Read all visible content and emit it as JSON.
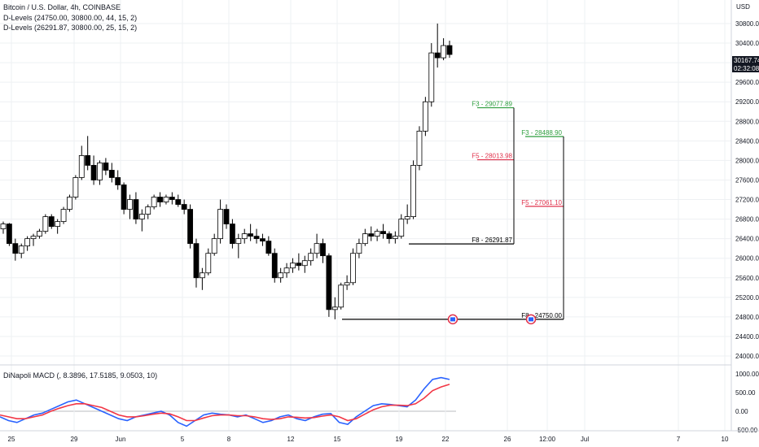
{
  "header": {
    "symbol_line": "Bitcoin / U.S. Dollar, 4h, COINBASE",
    "indicator_1": "D-Levels (24750.00, 30800.00, 44, 15, 2)",
    "indicator_2": "D-Levels (26291.87, 30800.00, 25, 15, 2)",
    "macd_label": "DiNapoli MACD (, 8.3896, 17.5185, 9.0503, 10)"
  },
  "price_axis": {
    "currency": "USD",
    "last_price": "30167.74",
    "countdown": "02:32:08"
  },
  "colors": {
    "up": "#ffffff",
    "down": "#000000",
    "wick": "#000000",
    "fib_green": "#2e9e3e",
    "fib_red": "#e0314b",
    "macd_blue": "#2962ff",
    "macd_red": "#f23645",
    "grid": "#eef0f3",
    "price_badge": "#131722"
  },
  "chart_data": {
    "type": "candlestick",
    "title": "Bitcoin / U.S. Dollar, 4h, COINBASE",
    "ylabel": "USD",
    "ylim": [
      23800,
      31300
    ],
    "yticks": [
      24000,
      24400,
      24800,
      25200,
      25600,
      26000,
      26400,
      26800,
      27200,
      27600,
      28000,
      28400,
      28800,
      29200,
      29600,
      30000,
      30400,
      30800
    ],
    "x_labels": [
      "25",
      "29",
      "Jun",
      "5",
      "8",
      "12",
      "15",
      "19",
      "22",
      "26",
      "12:00",
      "Jul",
      "7",
      "10"
    ],
    "grid": true,
    "ohlc": [
      [
        26600,
        26750,
        26500,
        26700
      ],
      [
        26700,
        26720,
        26250,
        26300
      ],
      [
        26300,
        26400,
        25950,
        26100
      ],
      [
        26100,
        26300,
        26000,
        26250
      ],
      [
        26250,
        26450,
        26150,
        26400
      ],
      [
        26400,
        26500,
        26250,
        26450
      ],
      [
        26450,
        26600,
        26400,
        26550
      ],
      [
        26550,
        26900,
        26500,
        26850
      ],
      [
        26850,
        26900,
        26600,
        26650
      ],
      [
        26650,
        26800,
        26500,
        26750
      ],
      [
        26750,
        27050,
        26700,
        27000
      ],
      [
        27000,
        27300,
        26950,
        27250
      ],
      [
        27250,
        27700,
        27200,
        27650
      ],
      [
        27650,
        28300,
        27600,
        28100
      ],
      [
        28100,
        28500,
        27800,
        27900
      ],
      [
        27900,
        28100,
        27500,
        27600
      ],
      [
        27600,
        28000,
        27500,
        27950
      ],
      [
        27950,
        28050,
        27700,
        27800
      ],
      [
        27800,
        27950,
        27550,
        27650
      ],
      [
        27650,
        27800,
        27400,
        27500
      ],
      [
        27500,
        27550,
        26900,
        27000
      ],
      [
        27000,
        27300,
        26800,
        27200
      ],
      [
        27200,
        27350,
        26700,
        26800
      ],
      [
        26800,
        27000,
        26550,
        26900
      ],
      [
        26900,
        27100,
        26800,
        27050
      ],
      [
        27050,
        27300,
        27000,
        27250
      ],
      [
        27250,
        27350,
        27050,
        27150
      ],
      [
        27150,
        27300,
        27100,
        27250
      ],
      [
        27250,
        27350,
        27100,
        27200
      ],
      [
        27200,
        27300,
        27050,
        27100
      ],
      [
        27100,
        27200,
        26900,
        27000
      ],
      [
        27000,
        27100,
        26200,
        26300
      ],
      [
        26300,
        26400,
        25400,
        25600
      ],
      [
        25600,
        25800,
        25350,
        25700
      ],
      [
        25700,
        26200,
        25650,
        26100
      ],
      [
        26100,
        26500,
        26050,
        26400
      ],
      [
        26400,
        27200,
        26300,
        27000
      ],
      [
        27000,
        27100,
        26600,
        26700
      ],
      [
        26700,
        26800,
        26200,
        26300
      ],
      [
        26300,
        26500,
        26000,
        26400
      ],
      [
        26400,
        26600,
        26300,
        26500
      ],
      [
        26500,
        26700,
        26350,
        26450
      ],
      [
        26450,
        26600,
        26300,
        26400
      ],
      [
        26400,
        26500,
        26250,
        26350
      ],
      [
        26350,
        26450,
        26050,
        26100
      ],
      [
        26100,
        26200,
        25500,
        25600
      ],
      [
        25600,
        25800,
        25500,
        25700
      ],
      [
        25700,
        25900,
        25600,
        25800
      ],
      [
        25800,
        26000,
        25700,
        25900
      ],
      [
        25900,
        26100,
        25750,
        25850
      ],
      [
        25850,
        26050,
        25700,
        25950
      ],
      [
        25950,
        26200,
        25850,
        26100
      ],
      [
        26100,
        26500,
        26000,
        26300
      ],
      [
        26300,
        26400,
        25900,
        26050
      ],
      [
        26050,
        26100,
        24800,
        24950
      ],
      [
        24950,
        25200,
        24750,
        25000
      ],
      [
        25000,
        25500,
        24950,
        25450
      ],
      [
        25450,
        25650,
        25350,
        25500
      ],
      [
        25500,
        26200,
        25450,
        26100
      ],
      [
        26100,
        26400,
        26000,
        26300
      ],
      [
        26300,
        26600,
        26250,
        26500
      ],
      [
        26500,
        26650,
        26350,
        26450
      ],
      [
        26450,
        26600,
        26350,
        26550
      ],
      [
        26550,
        26700,
        26400,
        26500
      ],
      [
        26500,
        26550,
        26300,
        26400
      ],
      [
        26400,
        26550,
        26300,
        26450
      ],
      [
        26450,
        26900,
        26400,
        26800
      ],
      [
        26800,
        27100,
        26700,
        26850
      ],
      [
        26850,
        28000,
        26800,
        27900
      ],
      [
        27900,
        28700,
        27800,
        28600
      ],
      [
        28600,
        29300,
        28500,
        29200
      ],
      [
        29200,
        30400,
        29100,
        30200
      ],
      [
        30200,
        30800,
        29900,
        30100
      ],
      [
        30100,
        30500,
        30050,
        30350
      ],
      [
        30350,
        30450,
        30100,
        30167.74
      ]
    ],
    "fib_levels": [
      {
        "label": "F3 - 29077.89",
        "value": 29077.89,
        "color": "green"
      },
      {
        "label": "F5 - 28013.98",
        "value": 28013.98,
        "color": "red"
      },
      {
        "label": "F8 - 26291.87",
        "value": 26291.87,
        "color": "black"
      },
      {
        "label": "F3 - 28488.90",
        "value": 28488.9,
        "color": "green"
      },
      {
        "label": "F5 - 27061.10",
        "value": 27061.1,
        "color": "red"
      },
      {
        "label": "F8 - 24750.00",
        "value": 24750.0,
        "color": "black"
      }
    ],
    "macd": {
      "yticks": [
        1000,
        500,
        0,
        -500
      ],
      "ylim": [
        -650,
        1100
      ],
      "fast_line": [
        -150,
        -250,
        -300,
        -200,
        -100,
        -50,
        50,
        150,
        250,
        300,
        200,
        100,
        0,
        -100,
        -200,
        -250,
        -150,
        -100,
        -50,
        0,
        -100,
        -300,
        -400,
        -250,
        -100,
        -50,
        -80,
        -100,
        -150,
        -100,
        -200,
        -300,
        -250,
        -150,
        -100,
        -200,
        -250,
        -150,
        -80,
        -60,
        -300,
        -350,
        -150,
        0,
        150,
        200,
        180,
        150,
        120,
        300,
        600,
        850,
        900,
        850
      ],
      "signal_line": [
        -100,
        -150,
        -200,
        -200,
        -150,
        -100,
        0,
        80,
        150,
        200,
        200,
        150,
        100,
        0,
        -100,
        -150,
        -150,
        -120,
        -80,
        -50,
        -70,
        -150,
        -250,
        -250,
        -180,
        -120,
        -100,
        -100,
        -120,
        -120,
        -150,
        -200,
        -220,
        -200,
        -150,
        -160,
        -180,
        -170,
        -130,
        -100,
        -150,
        -250,
        -200,
        -80,
        40,
        120,
        160,
        160,
        150,
        200,
        350,
        550,
        650,
        720
      ]
    }
  }
}
